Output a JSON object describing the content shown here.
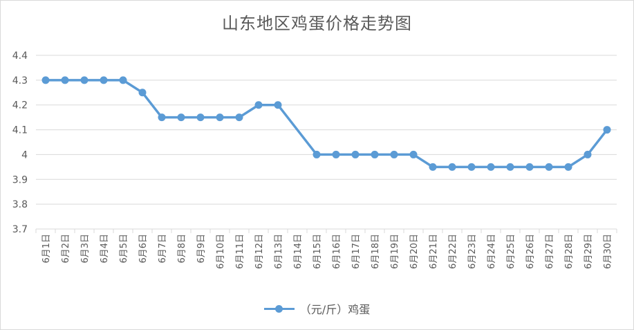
{
  "chart_data": {
    "type": "line",
    "title": "山东地区鸡蛋价格走势图",
    "categories": [
      "6月1日",
      "6月2日",
      "6月3日",
      "6月4日",
      "6月5日",
      "6月6日",
      "6月7日",
      "6月8日",
      "6月9日",
      "6月10日",
      "6月11日",
      "6月12日",
      "6月13日",
      "6月14日",
      "6月15日",
      "6月16日",
      "6月17日",
      "6月18日",
      "6月19日",
      "6月20日",
      "6月21日",
      "6月22日",
      "6月23日",
      "6月24日",
      "6月25日",
      "6月26日",
      "6月27日",
      "6月28日",
      "6月29日",
      "6月30日"
    ],
    "series": [
      {
        "name": "（元/斤）鸡蛋",
        "color": "#5b9bd5",
        "values": [
          4.3,
          4.3,
          4.3,
          4.3,
          4.3,
          4.25,
          4.15,
          4.15,
          4.15,
          4.15,
          4.15,
          4.2,
          4.2,
          null,
          4.0,
          4.0,
          4.0,
          4.0,
          4.0,
          4.0,
          3.95,
          3.95,
          3.95,
          3.95,
          3.95,
          3.95,
          3.95,
          3.95,
          4.0,
          4.1
        ]
      }
    ],
    "yticks": [
      "3.7",
      "3.8",
      "3.9",
      "4",
      "4.1",
      "4.2",
      "4.3",
      "4.4"
    ],
    "ylim": [
      3.7,
      4.4
    ],
    "grid": true,
    "legend_position": "bottom",
    "xlabel": "",
    "ylabel": ""
  }
}
